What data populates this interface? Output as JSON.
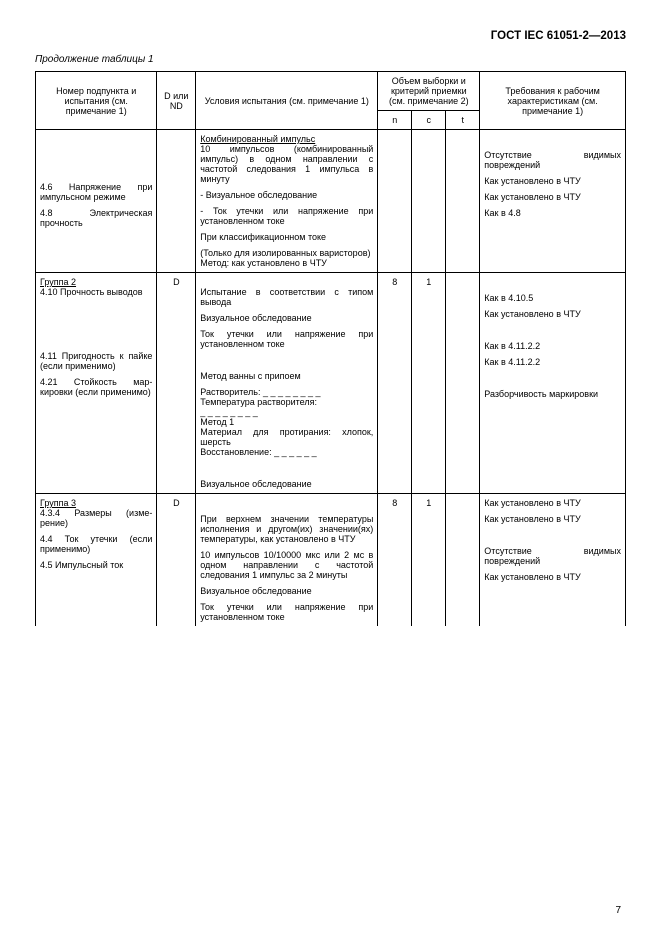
{
  "doc_id": "ГОСТ IEC 61051-2—2013",
  "continuation": "Продолжение таблицы 1",
  "page_num": "7",
  "headers": {
    "subject": "Номер подпункта и испытания\n(см. примечание 1)",
    "dnd": "D или ND",
    "cond": "Условия испытания\n(см. примечание 1)",
    "sampling": "Объем выборки и критерий приемки\n(см. примечание 2)",
    "n": "n",
    "c": "c",
    "t": "t",
    "req": "Требования к рабочим характеристикам\n(см. примечание 1)"
  },
  "rows": [
    {
      "subject_blocks": [
        "",
        "",
        "",
        "4.6 Напряжение при импульсном режиме",
        "4.8 Электрическая прочность"
      ],
      "dnd": "",
      "cond_blocks": [
        "<span class='u'>Комбинированный импульс</span><br>10 импульсов (комбиниро­ванный импульс) в одном направлении с частотой следования 1 импульса в минуту",
        "- Визуальное обследование",
        "- Ток утечки или напряже­ние при установленном токе",
        "При классификационном токе",
        "(Только для изолированных варисторов)<br>Метод: как установлено в ЧТУ"
      ],
      "n": "",
      "c": "",
      "t": "",
      "req_blocks": [
        "",
        "Отсутствие видимых повреждений",
        "Как установлено в ЧТУ",
        "Как установлено в ЧТУ",
        "Как в 4.8"
      ]
    },
    {
      "subject_blocks": [
        "<span class='u'>Группа 2</span><br>4.10 Прочность выво­дов",
        "",
        "",
        "",
        "4.11 Пригодность к пайке (если примени­мо)",
        "4.21 Стойкость мар­кировки (если приме­нимо)",
        "",
        ""
      ],
      "dnd": "D",
      "cond_blocks": [
        "<br>Испытание в соответствии с типом вывода",
        "Визуальное обследование",
        "Ток утечки или напряжение при установленном токе",
        "",
        "Метод ванны с припоем",
        "Растворитель: _ _ _ _ _ _ _ _<br>Температура растворителя:<br>_ _ _ _ _ _ _ _<br>Метод 1<br>Материал для протирания: хлопок, шерсть<br>Восстановление: _ _ _ _ _ _",
        "",
        "Визуальное обследование"
      ],
      "n": "8",
      "c": "1",
      "t": "",
      "req_blocks": [
        "",
        "Как в 4.10.5",
        "Как установлено в ЧТУ",
        "",
        "Как в 4.11.2.2",
        "Как в 4.11.2.2",
        "",
        "Разборчивость марки­ровки"
      ]
    },
    {
      "subject_blocks": [
        "<span class='u'>Группа 3</span><br>4.3.4 Размеры (изме­рение)",
        "4.4 Ток утечки (если применимо)",
        "4.5 Импульсный ток",
        "",
        ""
      ],
      "dnd": "D",
      "cond_blocks": [
        "",
        "При верхнем значении тем­пературы исполнения и дру­гом(их) значении(ях) тем­пературы, как установлено в ЧТУ",
        "10 импульсов 10/10000 мкс или 2 мс в одном направле­нии с частотой следования 1 импульс за 2 минуты",
        "Визуальное обследование",
        "Ток утечки или напряжение при установленном токе"
      ],
      "n": "8",
      "c": "1",
      "t": "",
      "req_blocks": [
        "Как установлено в ЧТУ",
        "Как установлено в ЧТУ",
        "",
        "Отсутствие видимых повреждений",
        "Как установлено в ЧТУ"
      ]
    }
  ]
}
